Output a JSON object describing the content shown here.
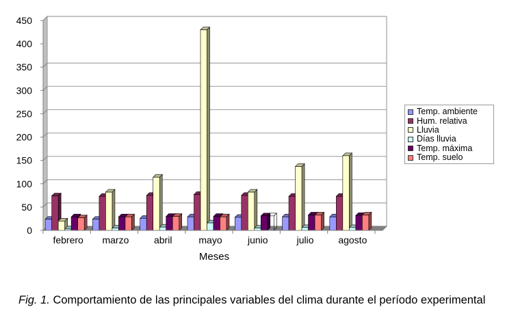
{
  "caption": {
    "fig_label": "Fig. 1.",
    "text": " Comportamiento de las principales variables del clima durante el período experimental"
  },
  "legend": {
    "items": [
      {
        "label": "Temp. ambiente",
        "color": "#9999FF"
      },
      {
        "label": "Hum. relativa",
        "color": "#993366"
      },
      {
        "label": "Lluvia",
        "color": "#FFFFCC"
      },
      {
        "label": "Días lluvia",
        "color": "#CCFFFF"
      },
      {
        "label": "Temp. máxima",
        "color": "#660066"
      },
      {
        "label": "Temp. suelo",
        "color": "#FF8080"
      }
    ]
  },
  "chart_data": {
    "type": "bar",
    "style": "3d-clustered-column",
    "title": "",
    "xlabel": "Meses",
    "ylabel": "",
    "ylim": [
      0,
      450
    ],
    "yticks": [
      0,
      50,
      100,
      150,
      200,
      250,
      300,
      350,
      400,
      450
    ],
    "grid": true,
    "legend_position": "right",
    "categories": [
      "febrero",
      "marzo",
      "abril",
      "mayo",
      "junio",
      "julio",
      "agosto"
    ],
    "series": [
      {
        "name": "Temp. ambiente",
        "color": "#9999FF",
        "values": [
          24,
          24,
          26,
          29,
          28,
          29,
          29
        ]
      },
      {
        "name": "Hum. relativa",
        "color": "#993366",
        "values": [
          74,
          73,
          75,
          77,
          75,
          73,
          73
        ]
      },
      {
        "name": "Lluvia",
        "color": "#FFFFCC",
        "values": [
          20,
          82,
          114,
          430,
          82,
          137,
          160
        ]
      },
      {
        "name": "Días lluvia",
        "color": "#CCFFFF",
        "values": [
          3,
          5,
          7,
          16,
          5,
          6,
          6
        ]
      },
      {
        "name": "Temp. máxima",
        "color": "#660066",
        "values": [
          29,
          29,
          30,
          30,
          31,
          33,
          32
        ]
      },
      {
        "name": "Temp. suelo",
        "color": "#FF8080",
        "values": [
          27,
          29,
          30,
          29,
          31,
          33,
          33
        ]
      }
    ],
    "notes": "Temp. suelo bar for junio is drawn as an empty outline"
  }
}
